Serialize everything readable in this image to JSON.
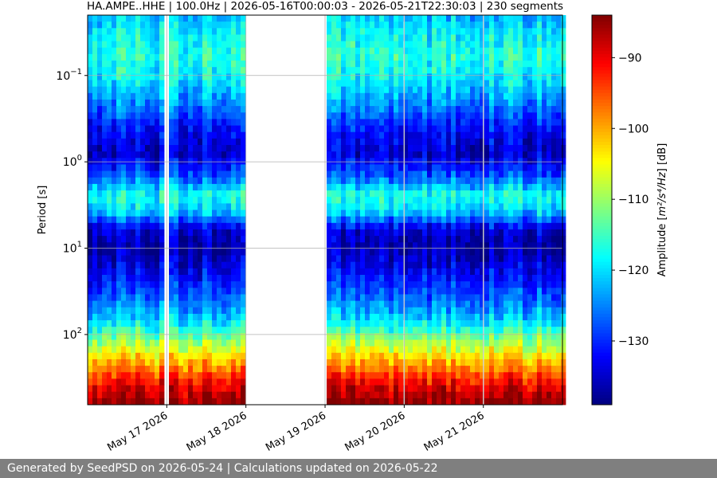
{
  "chart_data": {
    "type": "heatmap",
    "title": "HA.AMPE..HHE | 100.0Hz | 2026-05-16T00:00:03 - 2026-05-21T22:30:03 | 230 segments",
    "ylabel": "Period [s]",
    "y_scale": "log",
    "y_inverted": true,
    "ylim": [
      0.02,
      650
    ],
    "y_ticks": [
      {
        "value": 0.1,
        "base": "10",
        "exp": "−1"
      },
      {
        "value": 1,
        "base": "10",
        "exp": "0"
      },
      {
        "value": 10,
        "base": "10",
        "exp": "1"
      },
      {
        "value": 100,
        "base": "10",
        "exp": "2"
      }
    ],
    "x_range": [
      "2026-05-16T00:00",
      "2026-05-21T23:59"
    ],
    "x_ticks": [
      {
        "date": "2026-05-17",
        "label": "May 17 2026"
      },
      {
        "date": "2026-05-18",
        "label": "May 18 2026"
      },
      {
        "date": "2026-05-19",
        "label": "May 19 2026"
      },
      {
        "date": "2026-05-20",
        "label": "May 20 2026"
      },
      {
        "date": "2026-05-21",
        "label": "May 21 2026"
      }
    ],
    "data_gaps": [
      [
        "2026-05-16T23:50",
        "2026-05-17T00:10"
      ],
      [
        "2026-05-18T00:00",
        "2026-05-19T00:00"
      ],
      [
        "2026-05-19T23:50",
        "2026-05-20T00:10"
      ],
      [
        "2026-05-20T23:50",
        "2026-05-21T00:10"
      ]
    ],
    "grid": true,
    "colorbar": {
      "label_prefix": "Amplitude [",
      "label_math": "m²/s⁴/Hz",
      "label_suffix": "] [dB]",
      "range": [
        -139,
        -84
      ],
      "ticks": [
        -90,
        -100,
        -110,
        -120,
        -130
      ],
      "tick_labels": [
        "−90",
        "−100",
        "−110",
        "−120",
        "−130"
      ],
      "colormap": "jet"
    },
    "amplitude_profile_db": [
      {
        "period": 0.02,
        "db": -122
      },
      {
        "period": 0.03,
        "db": -119
      },
      {
        "period": 0.06,
        "db": -116
      },
      {
        "period": 0.1,
        "db": -118
      },
      {
        "period": 0.2,
        "db": -124
      },
      {
        "period": 0.4,
        "db": -131
      },
      {
        "period": 0.8,
        "db": -135
      },
      {
        "period": 1.5,
        "db": -127
      },
      {
        "period": 2.5,
        "db": -116
      },
      {
        "period": 4,
        "db": -122
      },
      {
        "period": 6,
        "db": -134
      },
      {
        "period": 10,
        "db": -137
      },
      {
        "period": 20,
        "db": -132
      },
      {
        "period": 40,
        "db": -126
      },
      {
        "period": 70,
        "db": -120
      },
      {
        "period": 100,
        "db": -113
      },
      {
        "period": 150,
        "db": -106
      },
      {
        "period": 250,
        "db": -97
      },
      {
        "period": 400,
        "db": -89
      },
      {
        "period": 650,
        "db": -84
      }
    ]
  },
  "footer": {
    "text": "Generated by SeedPSD on 2026-05-24 | Calculations updated on 2026-05-22"
  }
}
